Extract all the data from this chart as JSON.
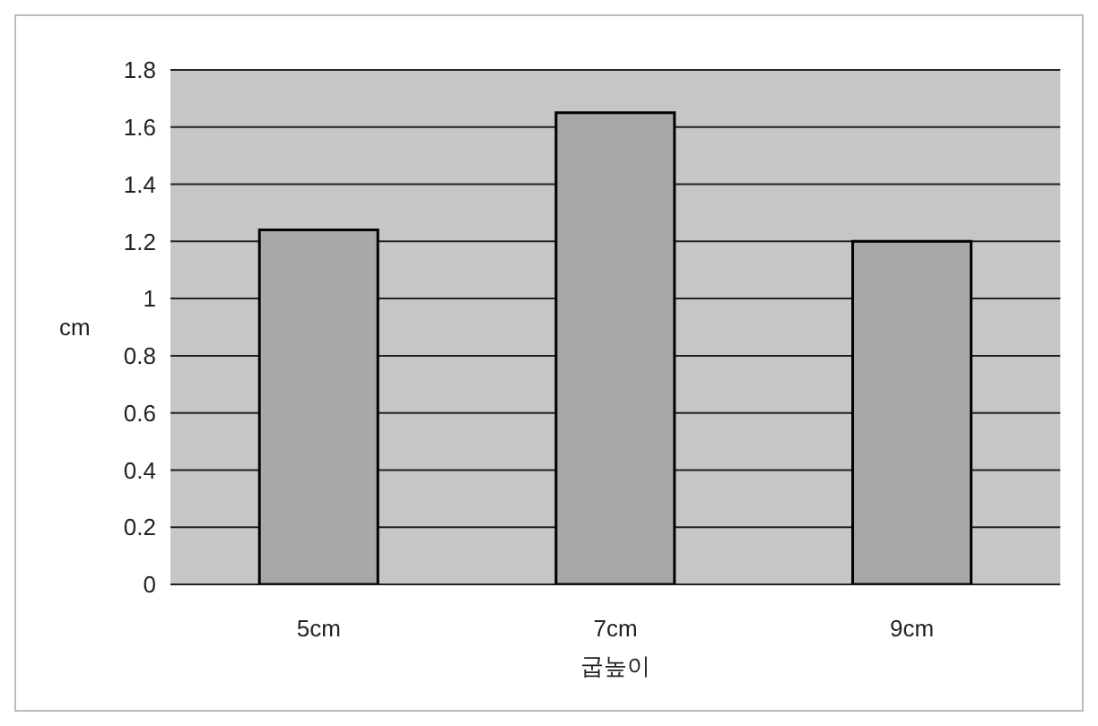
{
  "chart_data": {
    "type": "bar",
    "xlabel": "굽높이",
    "ylabel": "cm",
    "categories": [
      "5cm",
      "7cm",
      "9cm"
    ],
    "values": [
      1.24,
      1.65,
      1.2
    ],
    "color": "#a8a8a8",
    "ylim": [
      0,
      1.8
    ],
    "yticks": [
      0,
      0.2,
      0.4,
      0.6,
      0.8,
      1,
      1.2,
      1.4,
      1.6,
      1.8
    ],
    "grid": "y",
    "legend": false
  }
}
